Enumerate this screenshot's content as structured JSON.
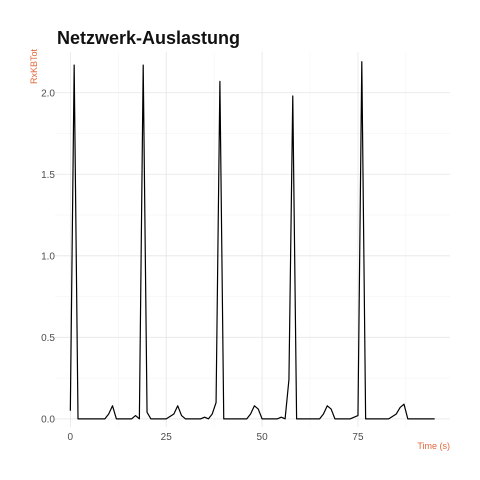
{
  "chart_data": {
    "type": "line",
    "title": "Netzwerk-Auslastung",
    "xlabel": "Time (s)",
    "ylabel": "RxKBTot",
    "xlim": [
      -4,
      99
    ],
    "ylim": [
      -0.05,
      2.25
    ],
    "x_ticks": [
      0,
      25,
      50,
      75
    ],
    "y_ticks": [
      0.0,
      0.5,
      1.0,
      1.5,
      2.0
    ],
    "x_tick_labels": [
      "0",
      "25",
      "50",
      "75"
    ],
    "y_tick_labels": [
      "0.0",
      "0.5",
      "1.0",
      "1.5",
      "2.0"
    ],
    "grid": true,
    "series": [
      {
        "color": "#000000",
        "x": [
          0,
          1,
          2,
          3,
          5,
          7,
          9,
          10,
          11,
          12,
          14,
          16,
          17,
          18,
          19,
          20,
          21,
          23,
          25,
          27,
          28,
          29,
          30,
          32,
          34,
          35,
          36,
          37,
          38,
          39,
          40,
          42,
          44,
          46,
          47,
          48,
          49,
          50,
          52,
          54,
          55,
          56,
          57,
          58,
          59,
          61,
          63,
          65,
          66,
          67,
          68,
          69,
          71,
          73,
          75,
          76,
          77,
          79,
          81,
          83,
          85,
          86,
          87,
          88,
          90,
          92,
          95
        ],
        "y": [
          0.05,
          2.17,
          0.0,
          0.0,
          0.0,
          0.0,
          0.0,
          0.03,
          0.08,
          0.0,
          0.0,
          0.0,
          0.02,
          0.0,
          2.17,
          0.04,
          0.0,
          0.0,
          0.0,
          0.03,
          0.08,
          0.02,
          0.0,
          0.0,
          0.0,
          0.01,
          0.0,
          0.03,
          0.1,
          2.07,
          0.0,
          0.0,
          0.0,
          0.0,
          0.03,
          0.08,
          0.06,
          0.0,
          0.0,
          0.0,
          0.01,
          0.0,
          0.24,
          1.98,
          0.0,
          0.0,
          0.0,
          0.0,
          0.03,
          0.08,
          0.06,
          0.0,
          0.0,
          0.0,
          0.02,
          2.19,
          0.0,
          0.0,
          0.0,
          0.0,
          0.03,
          0.07,
          0.09,
          0.0,
          0.0,
          0.0,
          0.0
        ]
      }
    ],
    "colors": {
      "title": "#111111",
      "axis_title": "#e0673a",
      "tick": "#4d4d4d",
      "grid": "#e5e5e5",
      "line": "#000000"
    }
  }
}
